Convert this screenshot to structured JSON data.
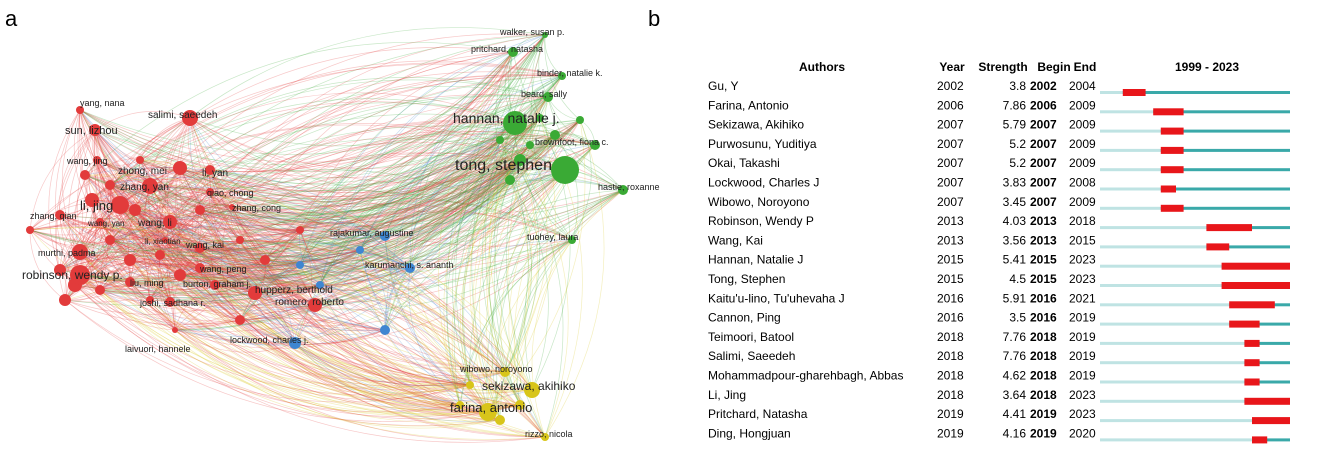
{
  "panel_a_label": "a",
  "panel_b_label": "b",
  "chart_data": [
    {
      "type": "network",
      "clusters": [
        {
          "color": "#e23b3b",
          "nodes": [
            "yang, nana",
            "salimi, saeedeh",
            "sun, lizhou",
            "wang, jing",
            "zhong, mei",
            "li, yan",
            "zhang, yan",
            "qiao, chong",
            "li, jing",
            "wang, li",
            "zhang, qian",
            "zhang, cong",
            "li, xiaotian",
            "wang, yan",
            "wang, kai",
            "murthi, padma",
            "robinson, wendy p.",
            "hupperz, berthold",
            "wang, peng",
            "liu, ming",
            "burton, graham j.",
            "joshi, sadhana r.",
            "romero, roberto",
            "laivuori, hannele"
          ]
        },
        {
          "color": "#3aaa35",
          "nodes": [
            "walker, susan p.",
            "pritchard, natasha",
            "binder, natalie k.",
            "beard, sally",
            "hannan, natalie j.",
            "brownfoot, fiona c.",
            "tong, stephen",
            "hastie, roxanne",
            "tuohey, laura"
          ]
        },
        {
          "color": "#3f86d1",
          "nodes": [
            "rajakumar, augustine",
            "karumanchi, s. ananth",
            "lockwood, charles j."
          ]
        },
        {
          "color": "#d8c51a",
          "nodes": [
            "wibowo, noroyono",
            "sekizawa, akihiko",
            "farina, antonio",
            "rizzo, nicola"
          ]
        }
      ]
    },
    {
      "type": "table",
      "headers": {
        "authors": "Authors",
        "year": "Year",
        "strength": "Strength",
        "begin": "Begin",
        "end": "End",
        "range": "1999 - 2023"
      },
      "axis_range": [
        1999,
        2023
      ],
      "bar_colors": {
        "base": "#bfe3e3",
        "active": "#3aa9a9",
        "burst": "#e8161a"
      },
      "rows": [
        {
          "author": "Gu, Y",
          "year": "2002",
          "strength": "3.8",
          "begin": "2002",
          "end": "2004"
        },
        {
          "author": "Farina, Antonio",
          "year": "2006",
          "strength": "7.86",
          "begin": "2006",
          "end": "2009"
        },
        {
          "author": "Sekizawa, Akihiko",
          "year": "2007",
          "strength": "5.79",
          "begin": "2007",
          "end": "2009"
        },
        {
          "author": "Purwosunu, Yuditiya",
          "year": "2007",
          "strength": "5.2",
          "begin": "2007",
          "end": "2009"
        },
        {
          "author": "Okai, Takashi",
          "year": "2007",
          "strength": "5.2",
          "begin": "2007",
          "end": "2009"
        },
        {
          "author": "Lockwood, Charles J",
          "year": "2007",
          "strength": "3.83",
          "begin": "2007",
          "end": "2008"
        },
        {
          "author": "Wibowo, Noroyono",
          "year": "2007",
          "strength": "3.45",
          "begin": "2007",
          "end": "2009"
        },
        {
          "author": "Robinson, Wendy P",
          "year": "2013",
          "strength": "4.03",
          "begin": "2013",
          "end": "2018"
        },
        {
          "author": "Wang, Kai",
          "year": "2013",
          "strength": "3.56",
          "begin": "2013",
          "end": "2015"
        },
        {
          "author": "Hannan, Natalie J",
          "year": "2015",
          "strength": "5.41",
          "begin": "2015",
          "end": "2023"
        },
        {
          "author": "Tong, Stephen",
          "year": "2015",
          "strength": "4.5",
          "begin": "2015",
          "end": "2023"
        },
        {
          "author": "Kaitu'u-lino, Tu'uhevaha J",
          "year": "2016",
          "strength": "5.91",
          "begin": "2016",
          "end": "2021"
        },
        {
          "author": "Cannon, Ping",
          "year": "2016",
          "strength": "3.5",
          "begin": "2016",
          "end": "2019"
        },
        {
          "author": "Teimoori, Batool",
          "year": "2018",
          "strength": "7.76",
          "begin": "2018",
          "end": "2019"
        },
        {
          "author": "Salimi, Saeedeh",
          "year": "2018",
          "strength": "7.76",
          "begin": "2018",
          "end": "2019"
        },
        {
          "author": "Mohammadpour-gharehbagh, Abbas",
          "year": "2018",
          "strength": "4.62",
          "begin": "2018",
          "end": "2019"
        },
        {
          "author": "Li, Jing",
          "year": "2018",
          "strength": "3.64",
          "begin": "2018",
          "end": "2023"
        },
        {
          "author": "Pritchard, Natasha",
          "year": "2019",
          "strength": "4.41",
          "begin": "2019",
          "end": "2023"
        },
        {
          "author": "Ding, Hongjuan",
          "year": "2019",
          "strength": "4.16",
          "begin": "2019",
          "end": "2020"
        }
      ]
    }
  ]
}
